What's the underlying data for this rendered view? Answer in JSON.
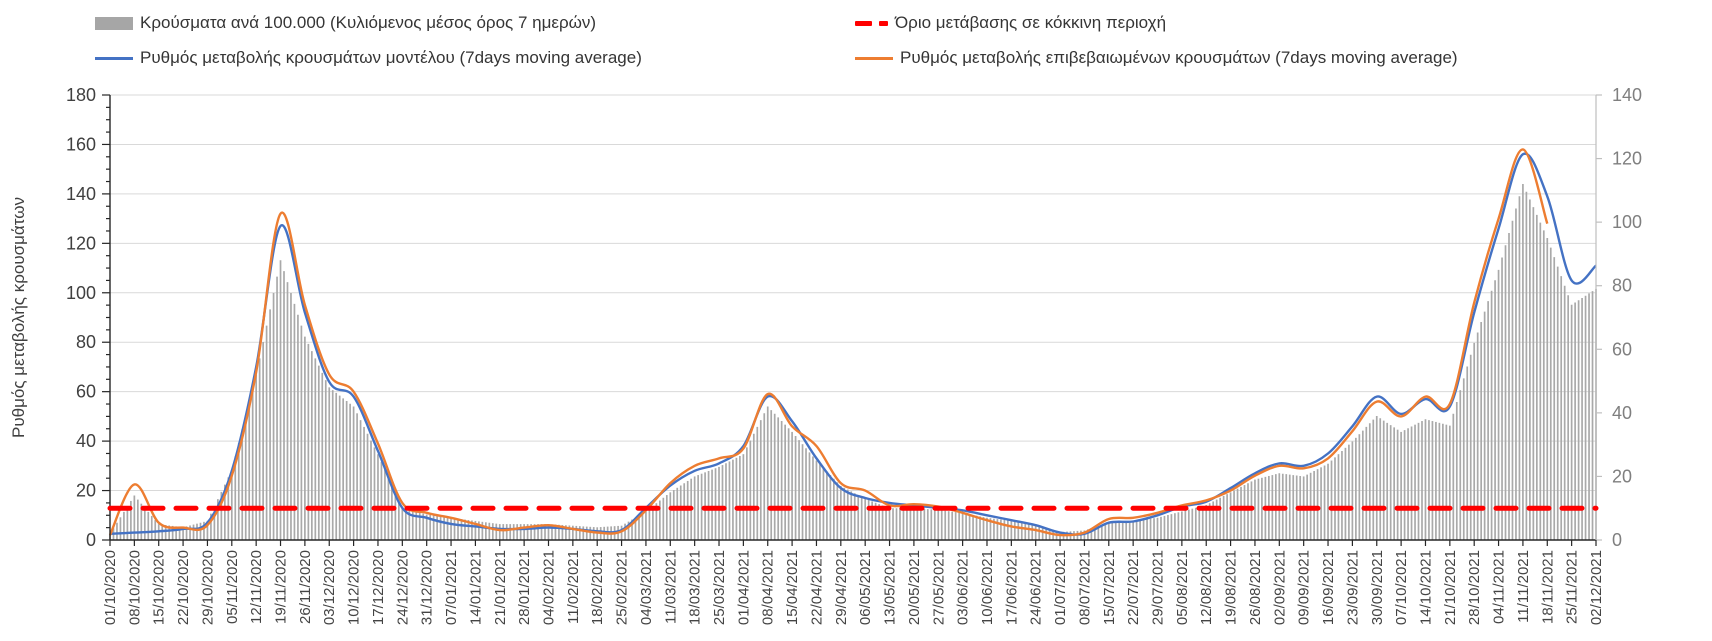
{
  "legend": {
    "items": [
      {
        "label": "Κρούσματα ανά 100.000 (Κυλιόμενος μέσος όρος 7 ημερών)",
        "swatch": "gray-bar",
        "color": "#a6a6a6"
      },
      {
        "label": "Όριο μετάβασης σε κόκκινη περιοχή",
        "swatch": "red-dash",
        "color": "#ff0000"
      },
      {
        "label": "Ρυθμός μεταβολής κρουσμάτων μοντέλου (7days moving average)",
        "swatch": "blue-line",
        "color": "#4472c4"
      },
      {
        "label": "Ρυθμός μεταβολής επιβεβαιωμένων κρουσμάτων (7days moving average)",
        "swatch": "orange-line",
        "color": "#ed7d31"
      }
    ]
  },
  "chart_data": {
    "type": "bar",
    "combo_types": [
      "bar",
      "line",
      "line"
    ],
    "title": "",
    "xlabel": "",
    "ylabel_left": "Ρυθμός μεταβολής κρουσμάτων",
    "left_axis": {
      "min": 0,
      "max": 180,
      "step": 20,
      "ticks": [
        0,
        20,
        40,
        60,
        80,
        100,
        120,
        140,
        160,
        180
      ],
      "minor_step": 5,
      "label_color": "#404040"
    },
    "right_axis": {
      "min": 0,
      "max": 140,
      "step": 20,
      "ticks": [
        0,
        20,
        40,
        60,
        80,
        100,
        120,
        140
      ],
      "label_color": "#7f7f7f"
    },
    "grid": true,
    "legend_position": "top",
    "categories": [
      "01/10/2020",
      "08/10/2020",
      "15/10/2020",
      "22/10/2020",
      "29/10/2020",
      "05/11/2020",
      "12/11/2020",
      "19/11/2020",
      "26/11/2020",
      "03/12/2020",
      "10/12/2020",
      "17/12/2020",
      "24/12/2020",
      "31/12/2020",
      "07/01/2021",
      "14/01/2021",
      "21/01/2021",
      "28/01/2021",
      "04/02/2021",
      "11/02/2021",
      "18/02/2021",
      "25/02/2021",
      "04/03/2021",
      "11/03/2021",
      "18/03/2021",
      "25/03/2021",
      "01/04/2021",
      "08/04/2021",
      "15/04/2021",
      "22/04/2021",
      "29/04/2021",
      "06/05/2021",
      "13/05/2021",
      "20/05/2021",
      "27/05/2021",
      "03/06/2021",
      "10/06/2021",
      "17/06/2021",
      "24/06/2021",
      "01/07/2021",
      "08/07/2021",
      "15/07/2021",
      "22/07/2021",
      "29/07/2021",
      "05/08/2021",
      "12/08/2021",
      "19/08/2021",
      "26/08/2021",
      "02/09/2021",
      "09/09/2021",
      "16/09/2021",
      "23/09/2021",
      "30/09/2021",
      "07/10/2021",
      "14/10/2021",
      "21/10/2021",
      "28/10/2021",
      "04/11/2021",
      "11/11/2021",
      "18/11/2021",
      "25/11/2021",
      "02/12/2021"
    ],
    "series": [
      {
        "name": "Κρούσματα ανά 100.000 (Κυλιόμενος μέσος όρος 7 ημερών)",
        "type": "bar",
        "axis": "right",
        "color": "#a9a9a9",
        "values": [
          2,
          14,
          5,
          4,
          6,
          22,
          52,
          88,
          64,
          48,
          42,
          27,
          10,
          8,
          7,
          6,
          5,
          5,
          5,
          4.5,
          4,
          4.5,
          9,
          15,
          20,
          23,
          27,
          42,
          34,
          25,
          17,
          13,
          10,
          10,
          9.5,
          8.5,
          7,
          6,
          5,
          2.5,
          3,
          5.5,
          6,
          7,
          9,
          11,
          15,
          19,
          21,
          20,
          24,
          31,
          39,
          34,
          38,
          36,
          62,
          85,
          112,
          95,
          74,
          79
        ]
      },
      {
        "name": "Ρυθμός μεταβολής κρουσμάτων μοντέλου (7days moving average)",
        "type": "line",
        "axis": "left",
        "color": "#4472c4",
        "values": [
          2.5,
          3,
          3.5,
          4.5,
          7,
          28,
          70,
          127,
          92,
          64,
          58,
          36,
          13,
          9,
          6.5,
          5.5,
          4.5,
          4.5,
          5,
          4.5,
          3.5,
          4,
          13,
          22,
          28,
          31,
          38,
          58,
          48,
          33,
          21,
          17,
          15,
          14,
          13,
          12,
          10,
          8,
          6,
          3,
          2.5,
          7,
          7.5,
          10,
          13.5,
          15.5,
          21,
          27,
          31,
          30,
          35,
          46,
          58,
          51,
          57,
          54,
          92,
          126,
          156,
          139,
          105,
          111
        ]
      },
      {
        "name": "Ρυθμός μεταβολής επιβεβαιωμένων κρουσμάτων (7days moving average)",
        "type": "line",
        "axis": "left",
        "color": "#ed7d31",
        "values": [
          2,
          22.5,
          7,
          5,
          6,
          26,
          68,
          132,
          95,
          67,
          60,
          39,
          15,
          11,
          9,
          6.5,
          4,
          5,
          6,
          4.5,
          3,
          3.5,
          12,
          23,
          30,
          33,
          37,
          59,
          46,
          38,
          23,
          20,
          14,
          14.5,
          13.5,
          11,
          8,
          5.5,
          4,
          2,
          3,
          8.5,
          9,
          11,
          14,
          16,
          20,
          26,
          30,
          29,
          33,
          44,
          56,
          50,
          58,
          55,
          96,
          130,
          158,
          128,
          null,
          null
        ]
      }
    ],
    "threshold": {
      "name": "Όριο μετάβασης σε κόκκινη περιοχή",
      "axis": "right",
      "value": 10,
      "color": "#ff0000"
    }
  }
}
